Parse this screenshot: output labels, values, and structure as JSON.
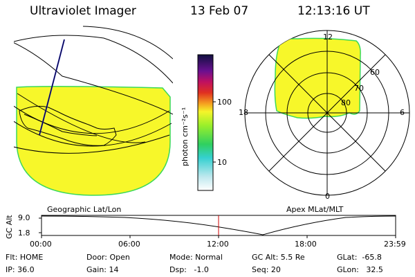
{
  "header": {
    "instrument": "Ultraviolet Imager",
    "date": "13 Feb 07",
    "time": "12:13:16 UT"
  },
  "colorbar": {
    "unit_label": "photon cm⁻²s⁻¹",
    "ticks": [
      "100",
      "10"
    ]
  },
  "polar_plot": {
    "mlt_labels": {
      "top": "12",
      "left": "18",
      "right": "6",
      "bottom": "0"
    },
    "lat_labels": [
      "60",
      "70",
      "80"
    ]
  },
  "panel_labels": {
    "left": "Geographic Lat/Lon",
    "right": "Apex MLat/MLT"
  },
  "altitude_plot": {
    "axis_label": "GC Alt",
    "ticks": [
      "9.0",
      "1.8"
    ],
    "time_ticks": [
      "00:00",
      "06:00",
      "12:00",
      "18:00",
      "23:59"
    ],
    "current_time_marker": "12:13"
  },
  "info": {
    "flt": "Flt: HOME",
    "ip": "IP: 36.0",
    "door": "Door: Open",
    "gain": "Gain: 14",
    "mode": "Mode: Normal",
    "dsp": "Dsp:   -1.0",
    "gcalt": "GC Alt: 5.5 Re",
    "seq": "Seq: 20",
    "glat": "GLat:  -65.8",
    "glon": "GLon:   32.5"
  },
  "colors": {
    "image_fill": "#f7f72a",
    "image_edge": "#3ad95a",
    "marker": "#cc0000",
    "orbit_track": "#2222cc"
  }
}
